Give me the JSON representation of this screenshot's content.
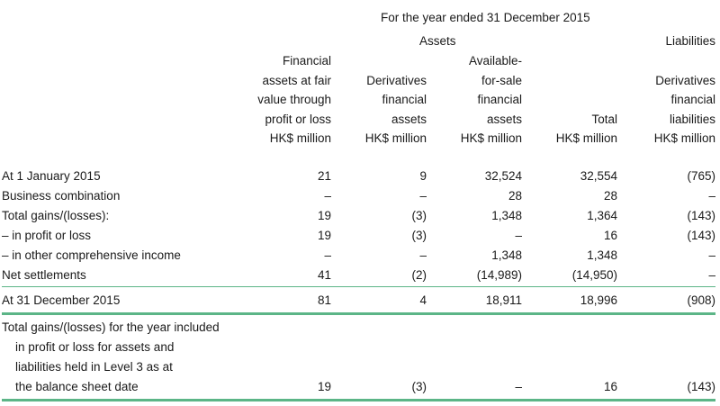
{
  "header": {
    "period": "For the year ended 31 December 2015",
    "assets_label": "Assets",
    "liabilities_label": "Liabilities",
    "columns": [
      {
        "lines": [
          "Financial",
          "assets at fair",
          "value through",
          "profit or loss",
          "HK$ million"
        ]
      },
      {
        "lines": [
          "Derivatives",
          "financial",
          "assets",
          "HK$ million"
        ]
      },
      {
        "lines": [
          "Available-",
          "for-sale",
          "financial",
          "assets",
          "HK$ million"
        ]
      },
      {
        "lines": [
          "Total",
          "HK$ million"
        ]
      },
      {
        "lines": [
          "Derivatives",
          "financial",
          "liabilities",
          "HK$ million"
        ]
      }
    ]
  },
  "rows": [
    {
      "label": "At 1 January 2015",
      "values": [
        "21",
        "9",
        "32,524",
        "32,554",
        "(765)"
      ]
    },
    {
      "label": "Business combination",
      "values": [
        "–",
        "–",
        "28",
        "28",
        "–"
      ]
    },
    {
      "label": "Total gains/(losses):",
      "values": [
        "19",
        "(3)",
        "1,348",
        "1,364",
        "(143)"
      ]
    },
    {
      "label": "– in profit or loss",
      "values": [
        "19",
        "(3)",
        "–",
        "16",
        "(143)"
      ]
    },
    {
      "label": "– in other comprehensive income",
      "values": [
        "–",
        "–",
        "1,348",
        "1,348",
        "–"
      ]
    },
    {
      "label": "Net settlements",
      "values": [
        "41",
        "(2)",
        "(14,989)",
        "(14,950)",
        "–"
      ]
    }
  ],
  "closing": {
    "label": "At 31 December 2015",
    "values": [
      "81",
      "4",
      "18,911",
      "18,996",
      "(908)"
    ]
  },
  "level3": {
    "label_lines": [
      "Total gains/(losses) for the year included",
      "in profit or loss for assets and",
      "liabilities held in Level 3 as at",
      "the balance sheet date"
    ],
    "values": [
      "19",
      "(3)",
      "–",
      "16",
      "(143)"
    ]
  },
  "colors": {
    "rule": "#5cb587",
    "text": "#1a1a1a"
  }
}
